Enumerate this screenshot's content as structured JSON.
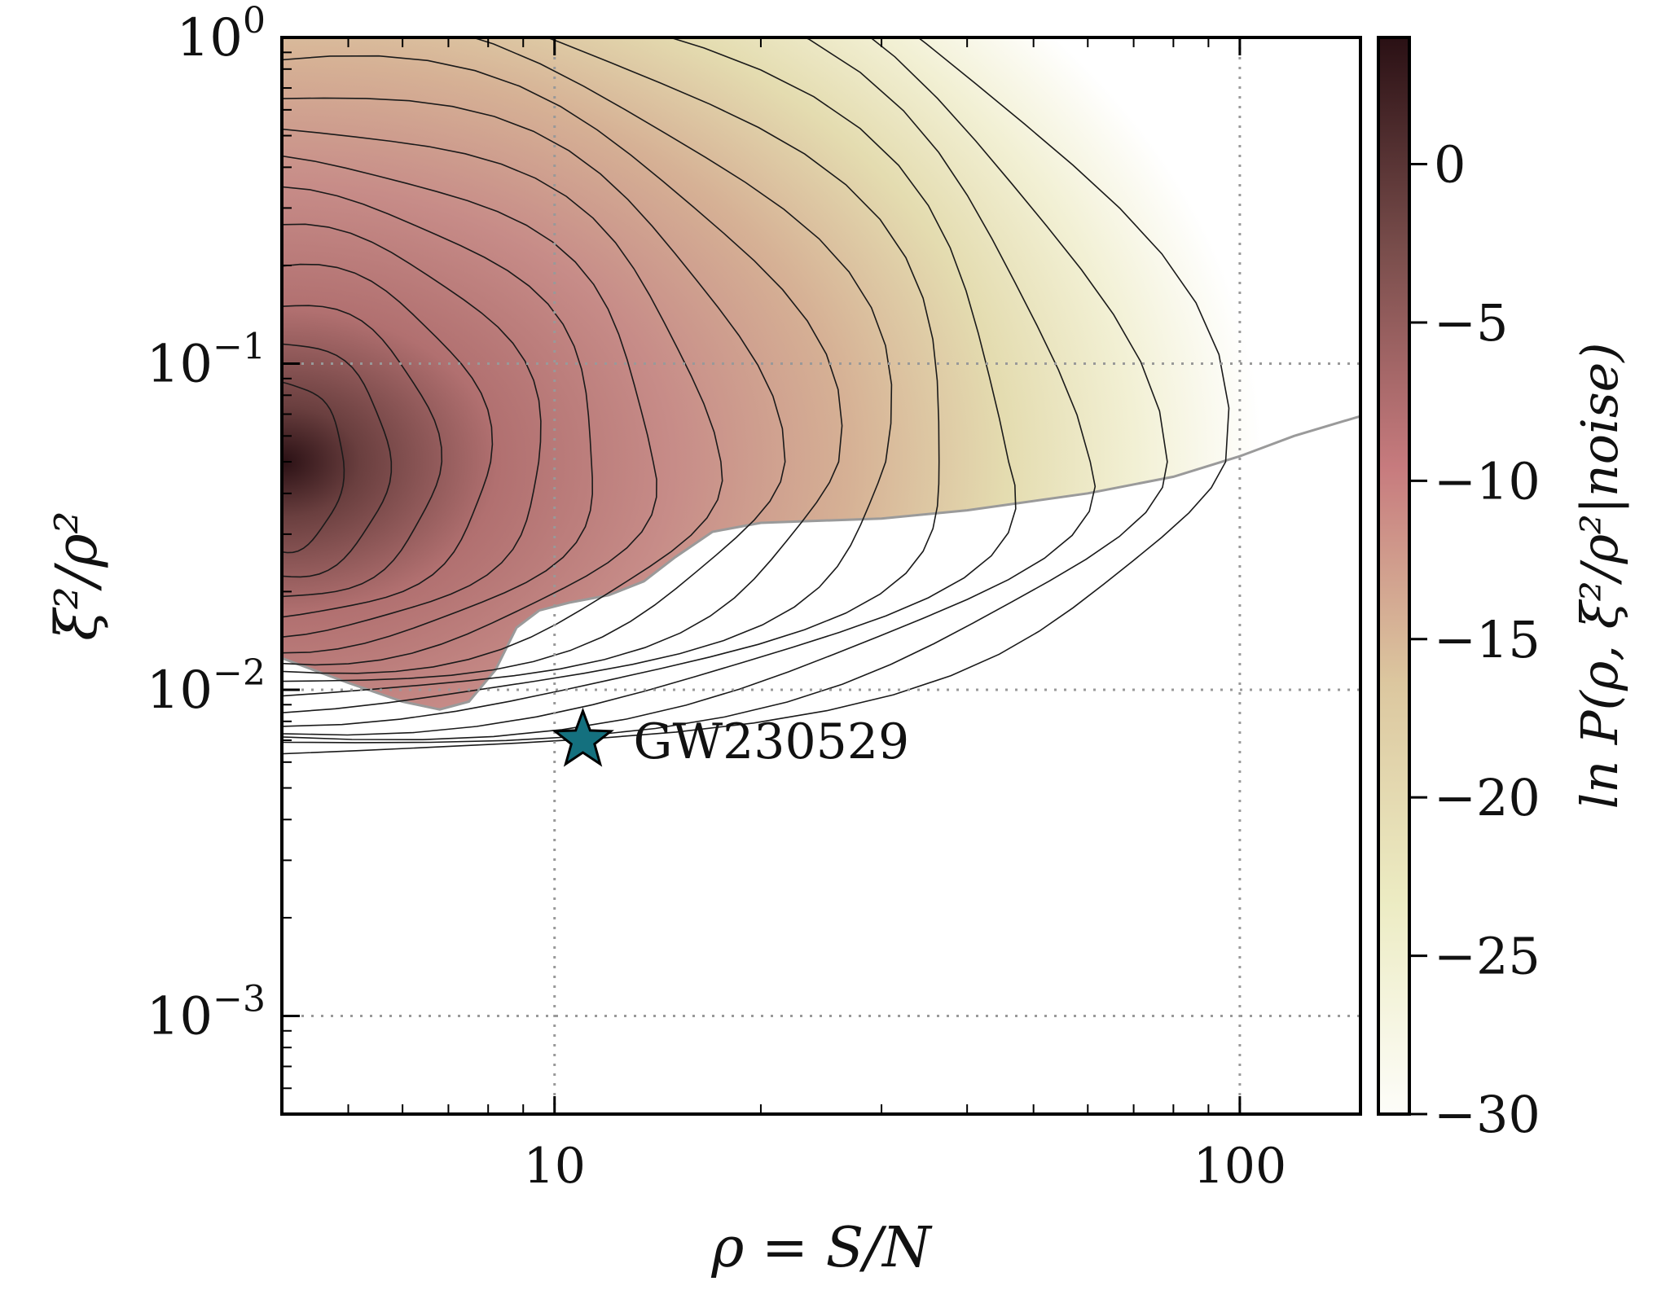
{
  "chart_data": {
    "type": "heatmap",
    "title": "",
    "xlabel": "ρ = S/N",
    "ylabel": "ξ²/ρ²",
    "xscale": "log",
    "yscale": "log",
    "xlim": [
      4,
      150
    ],
    "ylim": [
      0.0005,
      1
    ],
    "x_ticks": [
      {
        "value": 10,
        "label": "10"
      },
      {
        "value": 100,
        "label": "100"
      }
    ],
    "y_ticks": [
      {
        "value": 1,
        "base": "10",
        "exp": "0"
      },
      {
        "value": 0.1,
        "base": "10",
        "exp": "−1"
      },
      {
        "value": 0.01,
        "base": "10",
        "exp": "−2"
      },
      {
        "value": 0.001,
        "base": "10",
        "exp": "−3"
      }
    ],
    "grid": true,
    "grid_style": "dotted",
    "colorbar": {
      "label": "ln P(ρ, ξ²/ρ²|noise)",
      "range": [
        -30,
        4
      ],
      "ticks": [
        {
          "value": 0,
          "label": "0"
        },
        {
          "value": -5,
          "label": "−5"
        },
        {
          "value": -10,
          "label": "−10"
        },
        {
          "value": -15,
          "label": "−15"
        },
        {
          "value": -20,
          "label": "−20"
        },
        {
          "value": -25,
          "label": "−25"
        },
        {
          "value": -30,
          "label": "−30"
        }
      ],
      "colors": [
        "#fdfdf9",
        "#ecebc2",
        "#dcc79f",
        "#c77b7e",
        "#7a4e4c",
        "#2a1014"
      ]
    },
    "density_peak": {
      "x": 4.0,
      "y": 0.05,
      "value": 3.5
    },
    "contour_levels": [
      1,
      -1,
      -3,
      -5,
      -7,
      -9,
      -11,
      -13,
      -15,
      -17,
      -19,
      -21,
      -23,
      -25,
      -27,
      -29
    ],
    "support_boundary": [
      [
        4.0,
        0.0125
      ],
      [
        5.0,
        0.0105
      ],
      [
        6.0,
        0.0092
      ],
      [
        6.8,
        0.0087
      ],
      [
        7.5,
        0.0092
      ],
      [
        8.2,
        0.0115
      ],
      [
        8.8,
        0.0155
      ],
      [
        9.5,
        0.0175
      ],
      [
        10.5,
        0.0185
      ],
      [
        12.0,
        0.0195
      ],
      [
        13.5,
        0.0215
      ],
      [
        15.0,
        0.0255
      ],
      [
        17.0,
        0.0305
      ],
      [
        20.0,
        0.0325
      ],
      [
        30.0,
        0.0335
      ],
      [
        40.0,
        0.0355
      ],
      [
        60.0,
        0.04
      ],
      [
        80.0,
        0.045
      ],
      [
        100.0,
        0.052
      ],
      [
        120.0,
        0.06
      ],
      [
        150.0,
        0.069
      ]
    ],
    "annotations": [
      {
        "label": "GW230529",
        "x": 11.0,
        "y": 0.007,
        "marker": "star",
        "color": "#14707e"
      }
    ]
  }
}
